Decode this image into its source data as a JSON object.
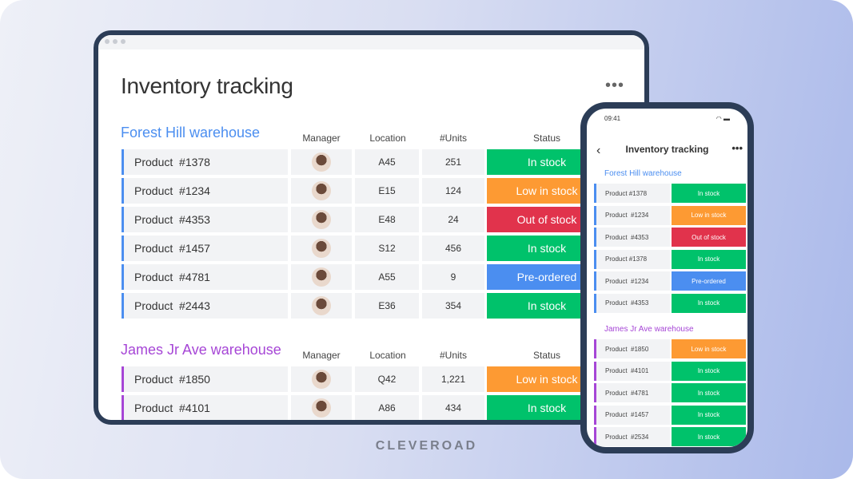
{
  "colors": {
    "in_stock": "#00c26b",
    "low_in_stock": "#fd9a33",
    "out_of_stock": "#e1334c",
    "pre_ordered": "#4b8ef0",
    "section1": "#4b8ef0",
    "section2": "#a646d6"
  },
  "tablet": {
    "title": "Inventory tracking",
    "more_icon": "more-horizontal-icon",
    "columns": [
      "Manager",
      "Location",
      "#Units",
      "Status"
    ],
    "sections": [
      {
        "title": "Forest Hill warehouse",
        "rows": [
          {
            "product": "Product  #1378",
            "location": "A45",
            "units": "251",
            "status": "In stock",
            "kind": "in_stock"
          },
          {
            "product": "Product  #1234",
            "location": "E15",
            "units": "124",
            "status": "Low in stock",
            "kind": "low_in_stock"
          },
          {
            "product": "Product  #4353",
            "location": "E48",
            "units": "24",
            "status": "Out of stock",
            "kind": "out_of_stock"
          },
          {
            "product": "Product  #1457",
            "location": "S12",
            "units": "456",
            "status": "In stock",
            "kind": "in_stock"
          },
          {
            "product": "Product  #4781",
            "location": "A55",
            "units": "9",
            "status": "Pre-ordered",
            "kind": "pre_ordered"
          },
          {
            "product": "Product  #2443",
            "location": "E36",
            "units": "354",
            "status": "In stock",
            "kind": "in_stock"
          }
        ]
      },
      {
        "title": "James Jr Ave warehouse",
        "rows": [
          {
            "product": "Product  #1850",
            "location": "Q42",
            "units": "1,221",
            "status": "Low in stock",
            "kind": "low_in_stock"
          },
          {
            "product": "Product  #4101",
            "location": "A86",
            "units": "434",
            "status": "In stock",
            "kind": "in_stock"
          }
        ]
      }
    ]
  },
  "phone": {
    "time": "09:41",
    "status_icons": "wifi-battery",
    "title": "Inventory tracking",
    "back": "‹",
    "more": "•••",
    "sections": [
      {
        "title": "Forest Hill warehouse",
        "rows": [
          {
            "product": "Product #1378",
            "status": "In stock",
            "kind": "in_stock"
          },
          {
            "product": "Product  #1234",
            "status": "Low in stock",
            "kind": "low_in_stock"
          },
          {
            "product": "Product  #4353",
            "status": "Out of stock",
            "kind": "out_of_stock"
          },
          {
            "product": "Product #1378",
            "status": "In stock",
            "kind": "in_stock"
          },
          {
            "product": "Product  #1234",
            "status": "Pre-ordered",
            "kind": "pre_ordered"
          },
          {
            "product": "Product  #4353",
            "status": "In stock",
            "kind": "in_stock"
          }
        ]
      },
      {
        "title": "James Jr Ave warehouse",
        "rows": [
          {
            "product": "Product  #1850",
            "status": "Low in stock",
            "kind": "low_in_stock"
          },
          {
            "product": "Product  #4101",
            "status": "In stock",
            "kind": "in_stock"
          },
          {
            "product": "Product  #4781",
            "status": "In stock",
            "kind": "in_stock"
          },
          {
            "product": "Product  #1457",
            "status": "In stock",
            "kind": "in_stock"
          },
          {
            "product": "Product  #2534",
            "status": "In stock",
            "kind": "in_stock"
          }
        ]
      }
    ]
  },
  "brand": "CLEVEROAD"
}
